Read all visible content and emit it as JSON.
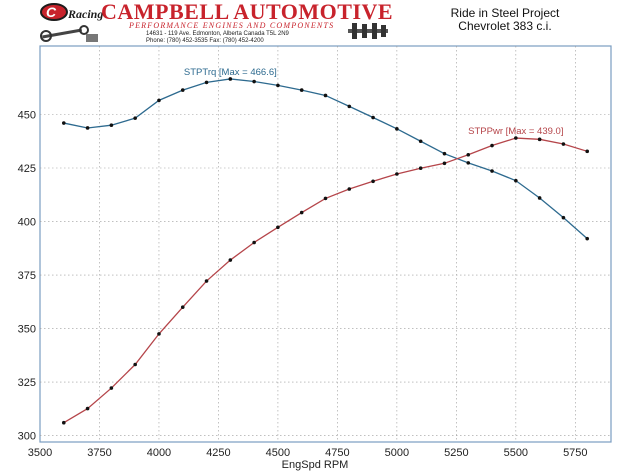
{
  "header": {
    "logo_mark": "C",
    "logo_script": "Racing",
    "company": "CAMPBELL AUTOMOTIVE",
    "tagline": "PERFORMANCE ENGINES AND COMPONENTS",
    "address_line": "14631 - 119 Ave. Edmonton, Alberta  Canada T5L 2N9",
    "phone_line": "Phone: (780) 452-3535 Fax:    (780) 452-4200",
    "project_title": "Ride in Steel Project",
    "project_subtitle": "Chevrolet 383 c.i."
  },
  "colors": {
    "torque": "#2d6a8f",
    "power": "#b5454a",
    "brand_red": "#c8232c",
    "grid": "#9a9a9a",
    "plot_border": "#7a9cc0"
  },
  "chart_data": {
    "type": "line",
    "xlabel": "EngSpd  RPM",
    "ylabel": "",
    "xlim": [
      3500,
      5900
    ],
    "ylim": [
      297,
      482
    ],
    "x_ticks": [
      3500,
      3750,
      4000,
      4250,
      4500,
      4750,
      5000,
      5250,
      5500,
      5750
    ],
    "y_ticks": [
      300,
      325,
      350,
      375,
      400,
      425,
      450
    ],
    "grid": true,
    "series": [
      {
        "name": "STPTrq",
        "label": "STPTrq [Max = 466.6]",
        "x": [
          3600,
          3700,
          3800,
          3900,
          4000,
          4100,
          4200,
          4300,
          4400,
          4500,
          4600,
          4700,
          4800,
          4900,
          5000,
          5100,
          5200,
          5300,
          5400,
          5500,
          5600,
          5700,
          5800
        ],
        "values": [
          446,
          443.7,
          445,
          448.3,
          456.6,
          461.4,
          465,
          466.6,
          465.4,
          463.6,
          461.4,
          458.9,
          453.8,
          448.6,
          443.3,
          437.5,
          431.7,
          427.4,
          423.6,
          419.1,
          411,
          401.8,
          392
        ]
      },
      {
        "name": "STPPwr",
        "label": "STPPwr [Max = 439.0]",
        "x": [
          3600,
          3700,
          3800,
          3900,
          4000,
          4100,
          4200,
          4300,
          4400,
          4500,
          4600,
          4700,
          4800,
          4900,
          5000,
          5100,
          5200,
          5300,
          5400,
          5500,
          5600,
          5700,
          5800
        ],
        "values": [
          306,
          312.6,
          322.2,
          333.2,
          347.5,
          360,
          372.2,
          382,
          390.2,
          397.3,
          404.2,
          410.8,
          415.2,
          418.8,
          422.2,
          424.9,
          427.2,
          431.2,
          435.5,
          439,
          438.4,
          436.2,
          432.8
        ]
      }
    ]
  }
}
